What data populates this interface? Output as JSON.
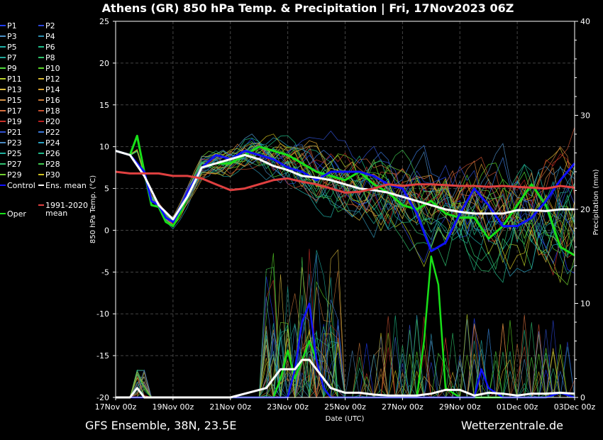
{
  "chart_data": {
    "type": "line",
    "title": "Athens  (GR)  850 hPa Temp. & Precipitation | Fri, 17Nov2023 06Z",
    "xlabel": "Date (UTC)",
    "ylabel": "850 hPa Temp. (°C)",
    "y2label": "Precipitation (mm)",
    "footer_left": "GFS Ensemble, 38N, 23.5E",
    "footer_right": "Wetterzentrale.de",
    "x_ticks": [
      "17Nov 00z",
      "19Nov 00z",
      "21Nov 00z",
      "23Nov 00z",
      "25Nov 00z",
      "27Nov 00z",
      "29Nov 00z",
      "01Dec 00z",
      "03Dec 00z"
    ],
    "xlim_days": [
      0,
      16
    ],
    "ylim": [
      -20,
      25
    ],
    "y_ticks": [
      "25",
      "20",
      "15",
      "10",
      "5",
      "0",
      "-5",
      "-10",
      "-15",
      "-20"
    ],
    "y_tick_values": [
      25,
      20,
      15,
      10,
      5,
      0,
      -5,
      -10,
      -15,
      -20
    ],
    "y2lim": [
      0,
      40
    ],
    "y2_ticks": [
      "40",
      "30",
      "20",
      "10",
      "0"
    ],
    "y2_tick_values": [
      40,
      30,
      20,
      10,
      0
    ],
    "grid": true,
    "legend_placement": "left",
    "legend": [
      {
        "name": "P1",
        "color": "#1e3cff"
      },
      {
        "name": "P2",
        "color": "#2b45d8"
      },
      {
        "name": "P3",
        "color": "#4a90c8"
      },
      {
        "name": "P4",
        "color": "#2e8fb0"
      },
      {
        "name": "P5",
        "color": "#1fb0a8"
      },
      {
        "name": "P6",
        "color": "#1fbf8a"
      },
      {
        "name": "P7",
        "color": "#22a89a"
      },
      {
        "name": "P8",
        "color": "#2ec46a"
      },
      {
        "name": "P9",
        "color": "#4ed83a"
      },
      {
        "name": "P10",
        "color": "#5ad828"
      },
      {
        "name": "P11",
        "color": "#b8d028"
      },
      {
        "name": "P12",
        "color": "#d6b830"
      },
      {
        "name": "P13",
        "color": "#e0c040"
      },
      {
        "name": "P14",
        "color": "#d8a030"
      },
      {
        "name": "P15",
        "color": "#d09048"
      },
      {
        "name": "P16",
        "color": "#c87838"
      },
      {
        "name": "P17",
        "color": "#d87040"
      },
      {
        "name": "P18",
        "color": "#c85030"
      },
      {
        "name": "P19",
        "color": "#c83028"
      },
      {
        "name": "P20",
        "color": "#b82020"
      },
      {
        "name": "P21",
        "color": "#3050d0"
      },
      {
        "name": "P22",
        "color": "#3a78d8"
      },
      {
        "name": "P23",
        "color": "#4a88c0"
      },
      {
        "name": "P24",
        "color": "#2aa0c0"
      },
      {
        "name": "P25",
        "color": "#20b0a0"
      },
      {
        "name": "P26",
        "color": "#20b888"
      },
      {
        "name": "P27",
        "color": "#30c070"
      },
      {
        "name": "P28",
        "color": "#40c850"
      },
      {
        "name": "P29",
        "color": "#70d030"
      },
      {
        "name": "P30",
        "color": "#d0c020"
      },
      {
        "name": "Control",
        "color": "#1010ff"
      },
      {
        "name": "Ens. mean",
        "color": "#ffffff"
      },
      {
        "name": "Oper",
        "color": "#18e018"
      },
      {
        "name": "1991-2020\nmean",
        "color": "#e04040"
      }
    ],
    "series": [
      {
        "name": "Oper",
        "axis": "temp",
        "color": "#18e018",
        "x": [
          0,
          0.5,
          0.75,
          1,
          1.25,
          1.5,
          1.75,
          2,
          2.25,
          2.5,
          3,
          3.5,
          4,
          4.5,
          5,
          5.5,
          6,
          6.5,
          7,
          7.5,
          8,
          8.5,
          9,
          9.5,
          10,
          10.5,
          11,
          11.5,
          12,
          12.5,
          13,
          13.5,
          14,
          14.5,
          15,
          15.5,
          16
        ],
        "y": [
          9.5,
          9.0,
          11.3,
          7.0,
          3.0,
          2.8,
          1.0,
          0.5,
          2.0,
          4.0,
          7.5,
          8.0,
          8.0,
          9.0,
          10.0,
          9.5,
          9.0,
          8.0,
          7.0,
          6.5,
          6.0,
          7.0,
          5.5,
          4.5,
          3.0,
          2.5,
          3.5,
          2.0,
          1.5,
          1.5,
          -1.0,
          0.5,
          3.0,
          5.5,
          3.0,
          -2.0,
          -3.0
        ]
      },
      {
        "name": "Control",
        "axis": "temp",
        "color": "#1010ff",
        "x": [
          0,
          0.5,
          1,
          1.25,
          1.5,
          1.75,
          2,
          2.25,
          2.5,
          3,
          3.5,
          4,
          4.5,
          5,
          5.5,
          6,
          6.5,
          7,
          7.5,
          8,
          8.5,
          9,
          9.5,
          10,
          10.5,
          11,
          11.5,
          12,
          12.5,
          13,
          13.5,
          14,
          14.5,
          15,
          15.5,
          16
        ],
        "y": [
          9.5,
          9.0,
          7.0,
          3.5,
          3.0,
          1.5,
          1.0,
          2.5,
          4.5,
          7.5,
          9.0,
          8.5,
          9.5,
          9.0,
          8.5,
          7.5,
          7.0,
          6.0,
          7.0,
          7.0,
          7.0,
          6.5,
          5.5,
          5.0,
          2.0,
          -2.5,
          -1.5,
          2.0,
          5.0,
          3.0,
          0.5,
          0.5,
          1.5,
          3.5,
          6.0,
          8.0
        ]
      },
      {
        "name": "Ens. mean",
        "axis": "temp",
        "color": "#ffffff",
        "x": [
          0,
          0.5,
          1,
          1.5,
          2,
          2.5,
          3,
          3.5,
          4,
          4.5,
          5,
          5.5,
          6,
          6.5,
          7,
          7.5,
          8,
          8.5,
          9,
          9.5,
          10,
          10.5,
          11,
          11.5,
          12,
          12.5,
          13,
          13.5,
          14,
          14.5,
          15,
          15.5,
          16
        ],
        "y": [
          9.5,
          9.0,
          6.5,
          3.0,
          1.3,
          4.0,
          7.5,
          8.0,
          8.5,
          9.0,
          8.5,
          7.7,
          7.2,
          6.5,
          6.3,
          6.0,
          5.5,
          5.0,
          4.8,
          4.5,
          4.0,
          3.5,
          3.0,
          2.5,
          2.2,
          2.0,
          2.0,
          2.0,
          2.4,
          2.4,
          2.3,
          2.5,
          2.5
        ]
      },
      {
        "name": "1991-2020\nmean",
        "axis": "temp",
        "color": "#e04040",
        "x": [
          0,
          0.5,
          1,
          1.5,
          2,
          2.5,
          3,
          3.5,
          4,
          4.5,
          5,
          5.5,
          6,
          6.5,
          7,
          7.5,
          8,
          8.5,
          9,
          9.5,
          10,
          10.5,
          11,
          11.5,
          12,
          12.5,
          13,
          13.5,
          14,
          14.5,
          15,
          15.5,
          16
        ],
        "y": [
          7.0,
          6.8,
          6.8,
          6.8,
          6.5,
          6.5,
          6.2,
          5.5,
          4.8,
          5.0,
          5.5,
          6.0,
          6.2,
          5.8,
          5.5,
          5.0,
          4.5,
          4.6,
          5.0,
          5.5,
          5.3,
          5.5,
          5.5,
          5.4,
          5.3,
          5.3,
          5.2,
          5.3,
          5.2,
          5.1,
          5.0,
          5.3,
          5.1
        ]
      },
      {
        "name": "Oper precip",
        "axis": "precip",
        "color": "#18e018",
        "x": [
          0,
          0.5,
          0.75,
          1,
          1.5,
          2,
          5.5,
          5.75,
          6,
          6.25,
          6.5,
          6.75,
          7,
          7.25,
          7.5,
          8,
          9,
          10,
          10.5,
          10.75,
          11,
          11.25,
          11.5,
          12,
          13,
          14,
          15,
          15.5,
          16
        ],
        "y": [
          0,
          0,
          1,
          0,
          0,
          0,
          0,
          2,
          5,
          2,
          4,
          6,
          4,
          1,
          0,
          0,
          0,
          0,
          0,
          6,
          15,
          12,
          1,
          0,
          0,
          0,
          0,
          0.5,
          0
        ]
      },
      {
        "name": "Control precip",
        "axis": "precip",
        "color": "#1010ff",
        "x": [
          0,
          1,
          2,
          5,
          6,
          6.25,
          6.5,
          6.75,
          7,
          7.25,
          7.5,
          8,
          9,
          10,
          11,
          11.5,
          12,
          12.5,
          12.75,
          13,
          13.5,
          14,
          15,
          15.5,
          16
        ],
        "y": [
          0,
          0,
          0,
          0,
          0,
          3,
          8,
          10,
          4,
          1,
          0,
          0,
          0,
          0,
          0,
          0,
          0,
          0,
          3,
          1,
          0,
          0,
          0,
          0.5,
          0
        ]
      },
      {
        "name": "Ens. mean precip",
        "axis": "precip",
        "color": "#ffffff",
        "x": [
          0,
          0.5,
          0.75,
          1,
          1.5,
          2,
          4,
          5.25,
          5.5,
          5.75,
          6,
          6.25,
          6.5,
          6.75,
          7,
          7.25,
          7.5,
          8,
          8.5,
          9,
          9.5,
          10,
          10.5,
          11,
          11.5,
          12,
          12.5,
          13,
          13.5,
          14,
          14.5,
          15,
          15.5,
          16
        ],
        "y": [
          0,
          0,
          1,
          0,
          0,
          0,
          0,
          1,
          2,
          3,
          3,
          3,
          4,
          4,
          3,
          2,
          1,
          0.5,
          0.5,
          0.3,
          0.2,
          0.2,
          0.2,
          0.4,
          0.8,
          0.8,
          0.2,
          0.5,
          0.4,
          0.2,
          0.4,
          0.4,
          0.5,
          0.4
        ]
      }
    ]
  }
}
